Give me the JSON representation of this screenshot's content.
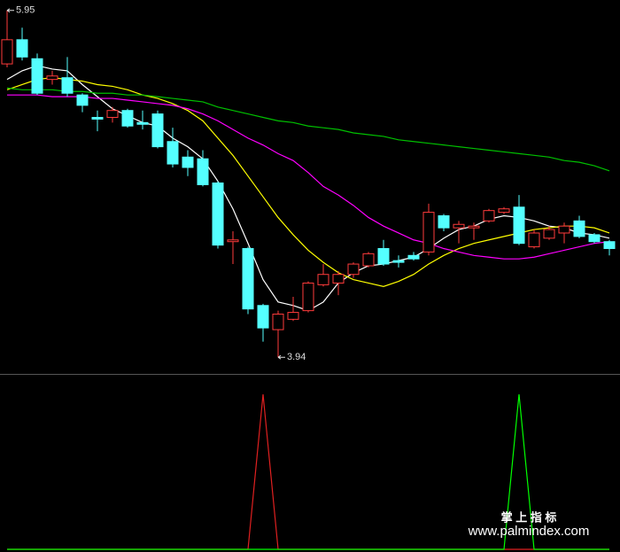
{
  "chart_data": {
    "type": "candlestick",
    "up_color": "#ff3b3b",
    "down_color": "#54ffff",
    "ylim": [
      3.9,
      6.0
    ],
    "open": [
      5.64,
      5.78,
      5.67,
      5.55,
      5.56,
      5.46,
      5.33,
      5.33,
      5.37,
      5.3,
      5.35,
      5.19,
      5.1,
      5.09,
      4.95,
      4.61,
      4.57,
      4.24,
      4.1,
      4.16,
      4.21,
      4.36,
      4.37,
      4.42,
      4.47,
      4.57,
      4.5,
      4.53,
      4.55,
      4.76,
      4.69,
      4.69,
      4.73,
      4.78,
      4.81,
      4.58,
      4.63,
      4.66,
      4.73,
      4.65,
      4.61
    ],
    "high": [
      5.95,
      5.85,
      5.7,
      5.6,
      5.68,
      5.47,
      5.37,
      5.39,
      5.38,
      5.37,
      5.37,
      5.27,
      5.14,
      5.14,
      4.96,
      4.67,
      4.58,
      4.25,
      4.21,
      4.29,
      4.38,
      4.48,
      4.44,
      4.49,
      4.55,
      4.62,
      4.53,
      4.55,
      4.83,
      4.77,
      4.73,
      4.72,
      4.8,
      4.81,
      4.88,
      4.68,
      4.7,
      4.72,
      4.76,
      4.66,
      4.62
    ],
    "low": [
      5.62,
      5.66,
      5.46,
      5.52,
      5.45,
      5.36,
      5.25,
      5.3,
      5.27,
      5.26,
      5.15,
      5.04,
      4.99,
      4.93,
      4.57,
      4.48,
      4.19,
      4.03,
      3.94,
      4.15,
      4.2,
      4.35,
      4.3,
      4.4,
      4.46,
      4.47,
      4.46,
      4.5,
      4.53,
      4.67,
      4.6,
      4.62,
      4.72,
      4.77,
      4.59,
      4.57,
      4.62,
      4.6,
      4.63,
      4.6,
      4.53
    ],
    "close": [
      5.78,
      5.68,
      5.47,
      5.57,
      5.47,
      5.4,
      5.32,
      5.37,
      5.28,
      5.29,
      5.16,
      5.06,
      5.04,
      4.94,
      4.59,
      4.62,
      4.22,
      4.11,
      4.19,
      4.2,
      4.37,
      4.42,
      4.42,
      4.48,
      4.54,
      4.48,
      4.49,
      4.51,
      4.78,
      4.69,
      4.71,
      4.7,
      4.79,
      4.8,
      4.6,
      4.66,
      4.68,
      4.7,
      4.64,
      4.61,
      4.57
    ],
    "series": [
      {
        "color": "#ffffff",
        "values": [
          5.55,
          5.6,
          5.63,
          5.61,
          5.6,
          5.52,
          5.45,
          5.38,
          5.34,
          5.3,
          5.28,
          5.21,
          5.16,
          5.09,
          4.96,
          4.8,
          4.6,
          4.39,
          4.26,
          4.24,
          4.21,
          4.26,
          4.37,
          4.43,
          4.47,
          4.48,
          4.5,
          4.52,
          4.57,
          4.63,
          4.68,
          4.7,
          4.74,
          4.76,
          4.75,
          4.73,
          4.7,
          4.69,
          4.66,
          4.65,
          4.63
        ]
      },
      {
        "color": "#ffff00",
        "values": [
          5.49,
          5.52,
          5.55,
          5.56,
          5.55,
          5.54,
          5.52,
          5.51,
          5.49,
          5.46,
          5.44,
          5.41,
          5.37,
          5.31,
          5.21,
          5.11,
          4.99,
          4.87,
          4.75,
          4.65,
          4.56,
          4.49,
          4.43,
          4.39,
          4.37,
          4.35,
          4.38,
          4.42,
          4.48,
          4.53,
          4.57,
          4.6,
          4.62,
          4.64,
          4.66,
          4.68,
          4.69,
          4.7,
          4.7,
          4.69,
          4.66
        ]
      },
      {
        "color": "#ff00ff",
        "values": [
          5.46,
          5.46,
          5.46,
          5.45,
          5.45,
          5.45,
          5.44,
          5.44,
          5.43,
          5.42,
          5.41,
          5.4,
          5.38,
          5.35,
          5.31,
          5.26,
          5.21,
          5.17,
          5.12,
          5.08,
          5.01,
          4.93,
          4.88,
          4.82,
          4.75,
          4.7,
          4.66,
          4.62,
          4.6,
          4.57,
          4.55,
          4.53,
          4.52,
          4.51,
          4.51,
          4.52,
          4.54,
          4.56,
          4.58,
          4.6,
          4.61
        ]
      },
      {
        "color": "#00c000",
        "values": [
          5.5,
          5.49,
          5.49,
          5.49,
          5.48,
          5.48,
          5.47,
          5.47,
          5.46,
          5.46,
          5.45,
          5.44,
          5.43,
          5.42,
          5.39,
          5.37,
          5.35,
          5.33,
          5.31,
          5.3,
          5.28,
          5.27,
          5.26,
          5.24,
          5.23,
          5.22,
          5.2,
          5.19,
          5.18,
          5.17,
          5.16,
          5.15,
          5.14,
          5.13,
          5.12,
          5.11,
          5.1,
          5.08,
          5.07,
          5.05,
          5.02
        ]
      }
    ],
    "annotations": [
      {
        "label": "5.95",
        "value": 5.95
      },
      {
        "label": "3.94",
        "value": 3.94
      }
    ],
    "indicator": {
      "ylim": [
        0,
        1
      ],
      "series": [
        {
          "color": "#e02020",
          "values": [
            0,
            0,
            0,
            0,
            0,
            0,
            0,
            0,
            0,
            0,
            0,
            0,
            0,
            0,
            0,
            0,
            0,
            1,
            0,
            0,
            0,
            0,
            0,
            0,
            0,
            0,
            0,
            0,
            0,
            0,
            0,
            0,
            0,
            0,
            0,
            0,
            0,
            0,
            0,
            0,
            0
          ]
        },
        {
          "color": "#00ff00",
          "values": [
            0,
            0,
            0,
            0,
            0,
            0,
            0,
            0,
            0,
            0,
            0,
            0,
            0,
            0,
            0,
            0,
            0,
            0,
            0,
            0,
            0,
            0,
            0,
            0,
            0,
            0,
            0,
            0,
            0,
            0,
            0,
            0,
            0,
            0,
            1,
            0,
            0,
            0,
            0,
            0,
            0
          ]
        }
      ]
    }
  },
  "watermark": {
    "title": "掌 上 指 标",
    "url": "www.palmindex.com"
  }
}
